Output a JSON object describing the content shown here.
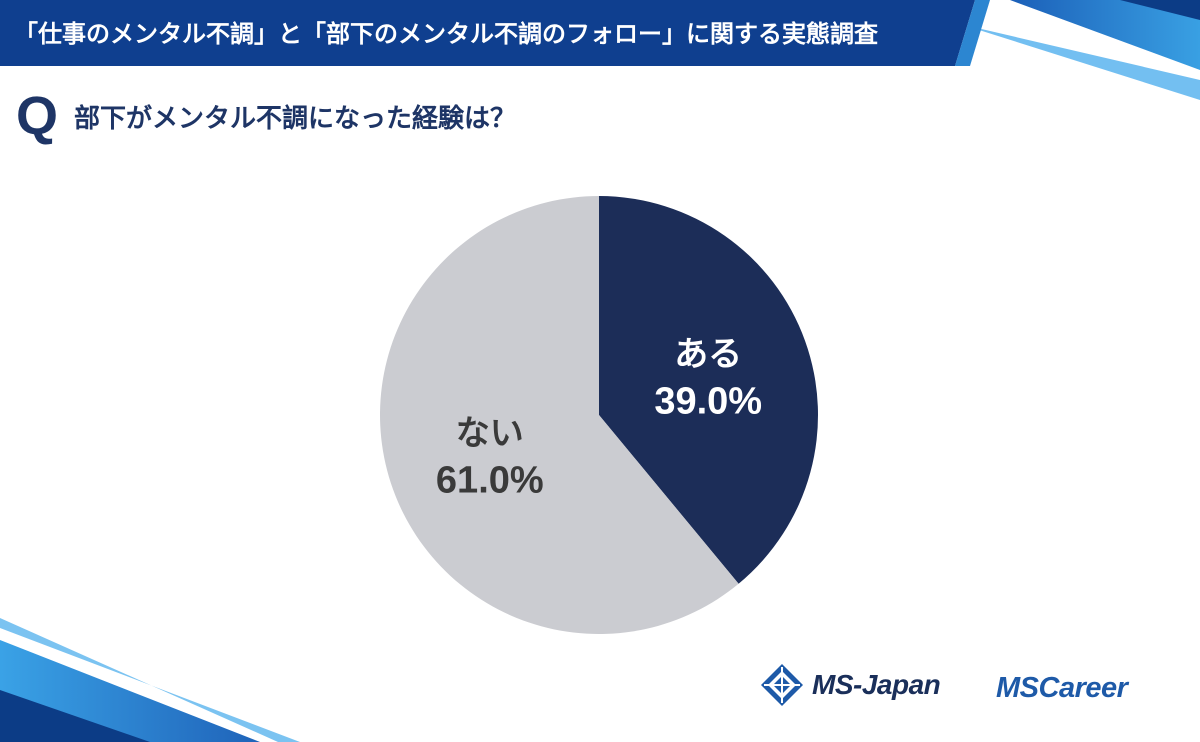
{
  "header": {
    "title": "「仕事のメンタル不調」と「部下のメンタル不調のフォロー」に関する実態調査"
  },
  "question": {
    "mark": "Q",
    "text": "部下がメンタル不調になった経験は？"
  },
  "chart_data": {
    "type": "pie",
    "title": "",
    "slices": [
      {
        "label": "ある",
        "value": 39.0,
        "value_label": "39.0%",
        "color": "#1c2d58",
        "text_color": "#ffffff"
      },
      {
        "label": "ない",
        "value": 61.0,
        "value_label": "61.0%",
        "color": "#cbccd1",
        "text_color": "#3a3a3a"
      }
    ],
    "start": "12 o'clock",
    "direction": "clockwise"
  },
  "logos": {
    "ms_japan": "MS-Japan",
    "ms_career": "MSCareer"
  },
  "colors": {
    "banner": "#0f3f8f",
    "banner_accent": "#2c86d1",
    "navy": "#1e3566"
  }
}
